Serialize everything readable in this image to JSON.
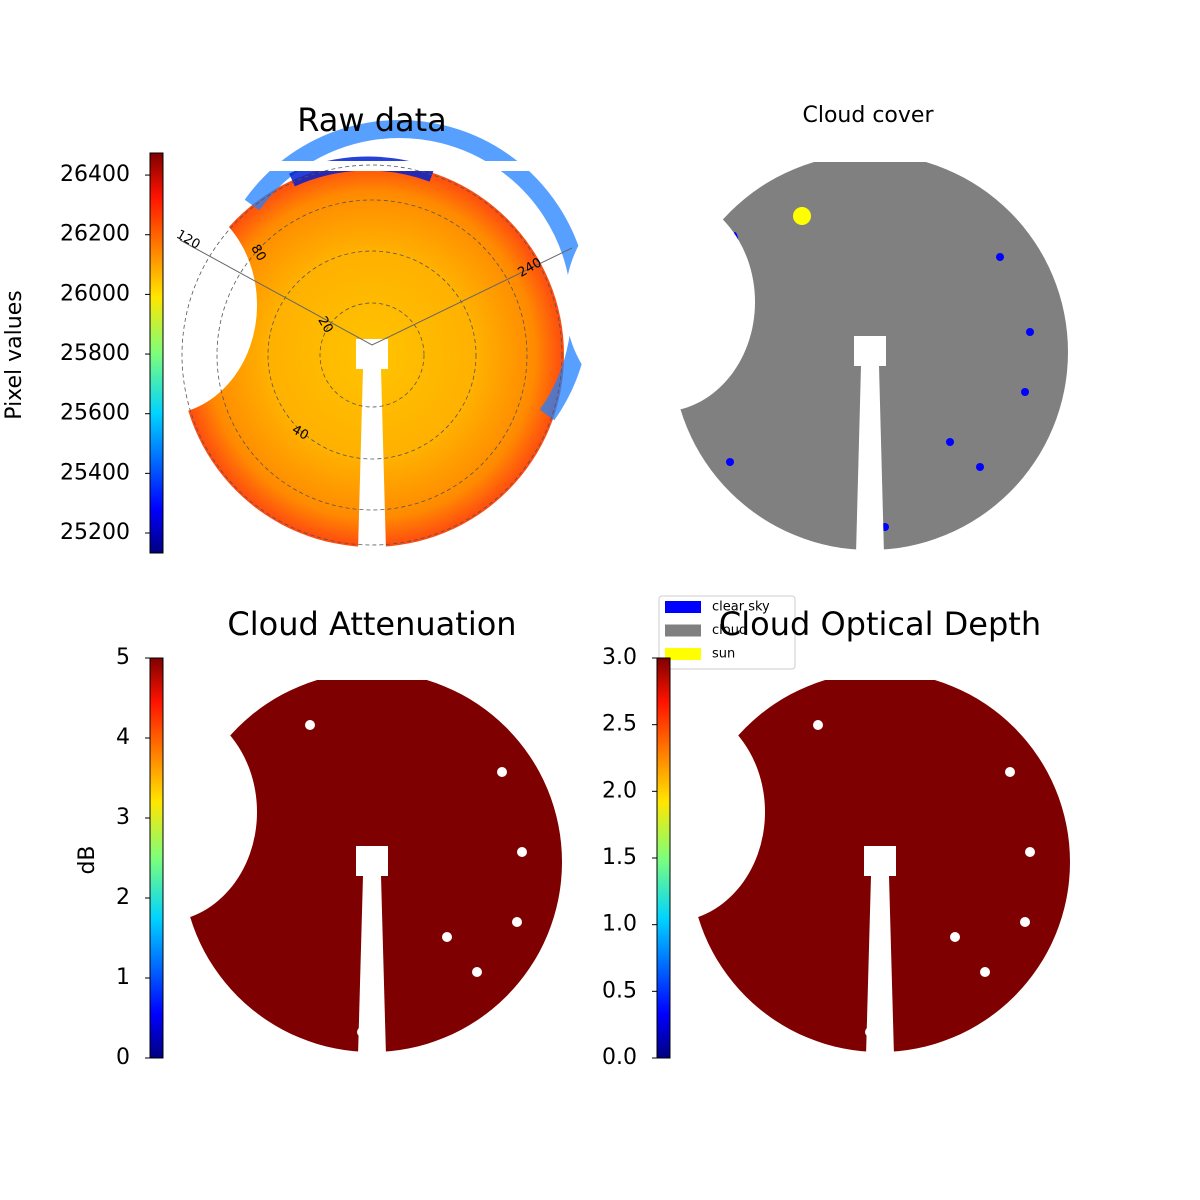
{
  "chart_data": [
    {
      "type": "image",
      "title": "Raw data",
      "colorbar": {
        "label": "Pixel values",
        "colormap": "jet",
        "lim": [
          25133,
          26474
        ],
        "ticks": [
          25200,
          25400,
          25600,
          25800,
          26000,
          26200,
          26400
        ]
      },
      "azimuth_labels": [
        "120",
        "240"
      ],
      "zenith_labels": [
        "20",
        "40",
        "80"
      ]
    },
    {
      "type": "image",
      "title": "Cloud cover",
      "legend": [
        {
          "name": "clear sky",
          "color": "#0000ff"
        },
        {
          "name": "cloud",
          "color": "#808080"
        },
        {
          "name": "sun",
          "color": "#ffff00"
        }
      ]
    },
    {
      "type": "image",
      "title": "Cloud Attenuation",
      "colorbar": {
        "label": "dB",
        "colormap": "jet",
        "lim": [
          0,
          5
        ],
        "ticks": [
          0,
          1,
          2,
          3,
          4,
          5
        ]
      }
    },
    {
      "type": "image",
      "title": "Cloud Optical Depth",
      "colorbar": {
        "colormap": "jet",
        "lim": [
          0,
          3
        ],
        "ticks": [
          {
            "value": 0,
            "label": "0.0"
          },
          {
            "value": 0.5,
            "label": "0.5"
          },
          {
            "value": 1,
            "label": "1.0"
          },
          {
            "value": 1.5,
            "label": "1.5"
          },
          {
            "value": 2,
            "label": "2.0"
          },
          {
            "value": 2.5,
            "label": "2.5"
          },
          {
            "value": 3,
            "label": "3.0"
          }
        ]
      }
    }
  ]
}
